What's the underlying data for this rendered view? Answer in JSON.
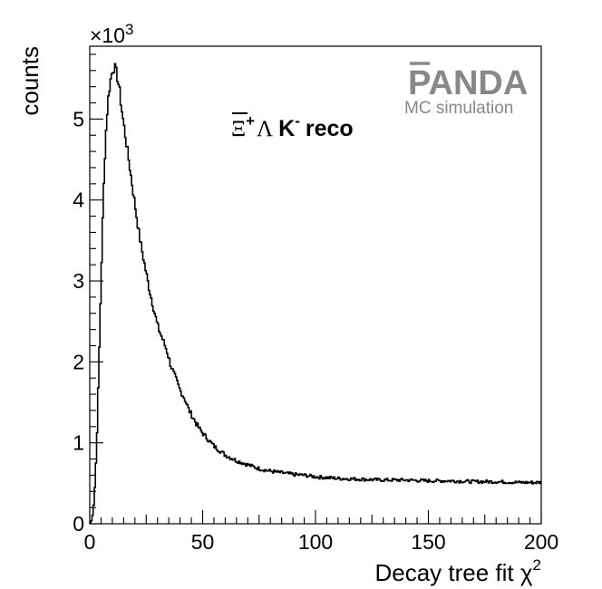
{
  "chart_data": {
    "type": "line",
    "style": "step-histogram",
    "xlabel": "Decay tree fit χ",
    "xlabel_superscript": "2",
    "ylabel": "counts",
    "y_multiplier_label": "×10",
    "y_multiplier_exponent": "3",
    "xlim": [
      0,
      200
    ],
    "ylim": [
      0,
      5900
    ],
    "x_ticks": [
      0,
      50,
      100,
      150,
      200
    ],
    "x_tick_labels": [
      "0",
      "50",
      "100",
      "150",
      "200"
    ],
    "y_ticks": [
      0,
      1000,
      2000,
      3000,
      4000,
      5000
    ],
    "y_tick_labels": [
      "0",
      "1",
      "2",
      "3",
      "4",
      "5"
    ],
    "grid": false,
    "legend": "none",
    "line_color": "#000000",
    "series": [
      {
        "x": [
          0,
          1,
          2,
          3,
          4,
          5,
          6,
          7,
          8,
          9,
          10,
          11,
          12,
          13,
          14,
          15,
          16,
          17,
          18,
          19,
          20,
          22,
          24,
          26,
          28,
          30,
          32,
          34,
          36,
          38,
          40,
          42,
          44,
          46,
          48,
          50,
          55,
          60,
          65,
          70,
          75,
          80,
          85,
          90,
          95,
          100,
          110,
          120,
          130,
          140,
          150,
          160,
          170,
          180,
          190,
          200
        ],
        "y": [
          0,
          50,
          300,
          900,
          1900,
          3000,
          4000,
          4750,
          5200,
          5450,
          5600,
          5650,
          5550,
          5400,
          5150,
          4950,
          4750,
          4550,
          4350,
          4150,
          3950,
          3550,
          3250,
          2950,
          2700,
          2450,
          2300,
          2150,
          1950,
          1800,
          1650,
          1550,
          1400,
          1300,
          1200,
          1120,
          960,
          850,
          780,
          730,
          680,
          650,
          630,
          610,
          600,
          580,
          560,
          550,
          540,
          540,
          530,
          530,
          520,
          520,
          510,
          510
        ]
      }
    ],
    "annotation": {
      "xi": "Ξ",
      "xi_charge": "+",
      "lambda": "Λ",
      "kaon": "K",
      "kaon_charge": "-",
      "text": "reco"
    }
  },
  "logo": {
    "name": "PANDA",
    "subtitle": "MC simulation"
  }
}
